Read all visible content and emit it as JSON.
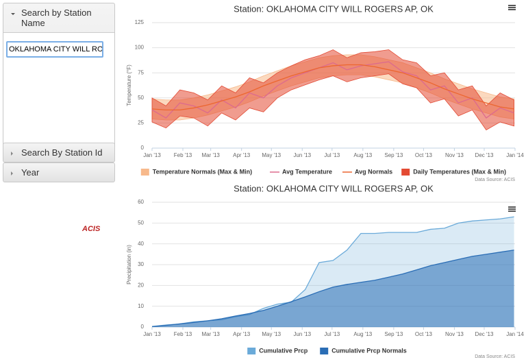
{
  "sidebar": {
    "panels": [
      {
        "title": "Search by Station Name",
        "input": "OKLAHOMA CITY WILL ROGERS AP, OK"
      },
      {
        "title": "Search By Station Id"
      },
      {
        "title": "Year"
      }
    ],
    "logo": "ACIS"
  },
  "chart_data": [
    {
      "type": "line",
      "title": "Station: OKLAHOMA CITY WILL ROGERS AP, OK",
      "y_label": "Temperature (°F)",
      "credit": "Data Source: ACIS",
      "x": [
        0,
        14,
        28,
        42,
        56,
        70,
        84,
        98,
        112,
        126,
        140,
        154,
        168,
        182,
        196,
        210,
        224,
        238,
        252,
        266,
        280,
        294,
        308,
        322,
        336,
        350,
        364
      ],
      "xlim": [
        0,
        365
      ],
      "xticks": [
        {
          "value": 0,
          "label": "Jan '13"
        },
        {
          "value": 31,
          "label": "Feb '13"
        },
        {
          "value": 59,
          "label": "Mar '13"
        },
        {
          "value": 90,
          "label": "Apr '13"
        },
        {
          "value": 120,
          "label": "May '13"
        },
        {
          "value": 151,
          "label": "Jun '13"
        },
        {
          "value": 181,
          "label": "Jul '13"
        },
        {
          "value": 212,
          "label": "Aug '13"
        },
        {
          "value": 243,
          "label": "Sep '13"
        },
        {
          "value": 273,
          "label": "Oct '13"
        },
        {
          "value": 304,
          "label": "Nov '13"
        },
        {
          "value": 334,
          "label": "Dec '13"
        },
        {
          "value": 365,
          "label": "Jan '14"
        }
      ],
      "ylim": [
        0,
        125
      ],
      "yticks": [
        0,
        25,
        50,
        75,
        100,
        125
      ],
      "grid": true,
      "series": [
        {
          "name": "Temperature Normals (Max & Min)",
          "type": "arearange",
          "color": "#f7b98b",
          "high": [
            49,
            48,
            48,
            50,
            53,
            57,
            61,
            66,
            72,
            77,
            82,
            86,
            90,
            92,
            93,
            93,
            91,
            88,
            85,
            80,
            75,
            69,
            64,
            59,
            55,
            51,
            49
          ],
          "low": [
            29,
            28,
            28,
            30,
            33,
            37,
            41,
            46,
            52,
            57,
            62,
            66,
            70,
            72,
            73,
            73,
            71,
            68,
            65,
            60,
            55,
            49,
            44,
            39,
            35,
            31,
            29
          ]
        },
        {
          "name": "Avg Temperature",
          "type": "line",
          "color": "#dc6a8e",
          "values": [
            38,
            30,
            45,
            42,
            35,
            48,
            40,
            55,
            50,
            62,
            70,
            75,
            80,
            85,
            78,
            82,
            84,
            86,
            76,
            72,
            58,
            62,
            45,
            50,
            30,
            40,
            35
          ]
        },
        {
          "name": "Avg Normals",
          "type": "line",
          "color": "#ec6630",
          "values": [
            39,
            38,
            38,
            40,
            43,
            47,
            51,
            56,
            62,
            67,
            72,
            76,
            80,
            82,
            83,
            83,
            81,
            78,
            75,
            70,
            65,
            59,
            54,
            49,
            45,
            41,
            39
          ]
        },
        {
          "name": "Daily Temperatures (Max & Min)",
          "type": "arearange",
          "color": "#e34a33",
          "high": [
            50,
            42,
            58,
            55,
            48,
            62,
            55,
            70,
            65,
            75,
            82,
            88,
            92,
            98,
            90,
            95,
            96,
            98,
            88,
            85,
            72,
            75,
            58,
            62,
            42,
            55,
            48
          ],
          "low": [
            26,
            20,
            32,
            30,
            22,
            35,
            28,
            40,
            36,
            50,
            58,
            63,
            68,
            72,
            66,
            70,
            72,
            74,
            64,
            60,
            45,
            49,
            32,
            38,
            18,
            26,
            22
          ]
        }
      ]
    },
    {
      "type": "area",
      "title": "Station: OKLAHOMA CITY WILL ROGERS AP, OK",
      "y_label": "Precipitation (in)",
      "credit": "Data Source: ACIS",
      "x": [
        0,
        14,
        28,
        42,
        56,
        70,
        84,
        98,
        112,
        126,
        140,
        154,
        168,
        182,
        196,
        210,
        224,
        238,
        252,
        266,
        280,
        294,
        308,
        322,
        336,
        350,
        364
      ],
      "xlim": [
        0,
        365
      ],
      "xticks": [
        {
          "value": 0,
          "label": "Jan '13"
        },
        {
          "value": 31,
          "label": "Feb '13"
        },
        {
          "value": 59,
          "label": "Mar '13"
        },
        {
          "value": 90,
          "label": "Apr '13"
        },
        {
          "value": 120,
          "label": "May '13"
        },
        {
          "value": 151,
          "label": "Jun '13"
        },
        {
          "value": 181,
          "label": "Jul '13"
        },
        {
          "value": 212,
          "label": "Aug '13"
        },
        {
          "value": 243,
          "label": "Sep '13"
        },
        {
          "value": 273,
          "label": "Oct '13"
        },
        {
          "value": 304,
          "label": "Nov '13"
        },
        {
          "value": 334,
          "label": "Dec '13"
        },
        {
          "value": 365,
          "label": "Jan '14"
        }
      ],
      "ylim": [
        0,
        60
      ],
      "yticks": [
        0,
        10,
        20,
        30,
        40,
        50,
        60
      ],
      "grid": true,
      "series": [
        {
          "name": "Cumulative Prcp",
          "type": "area",
          "color": "#6aaad9",
          "values": [
            0.3,
            1,
            1.5,
            2.5,
            3,
            3.5,
            5,
            6,
            9,
            11,
            12,
            18,
            31,
            32,
            37,
            45,
            45,
            45.5,
            45.5,
            45.5,
            47,
            47.5,
            50,
            51,
            51.5,
            52,
            53
          ]
        },
        {
          "name": "Cumulative Prcp Normals",
          "type": "area",
          "color": "#2a6db5",
          "values": [
            0.2,
            0.8,
            1.5,
            2.2,
            3,
            4,
            5.3,
            6.5,
            8,
            10,
            12.2,
            14.5,
            17,
            19.2,
            20.5,
            21.5,
            22.5,
            24,
            25.5,
            27.5,
            29.5,
            31,
            32.5,
            34,
            35,
            36,
            37
          ]
        }
      ]
    }
  ]
}
